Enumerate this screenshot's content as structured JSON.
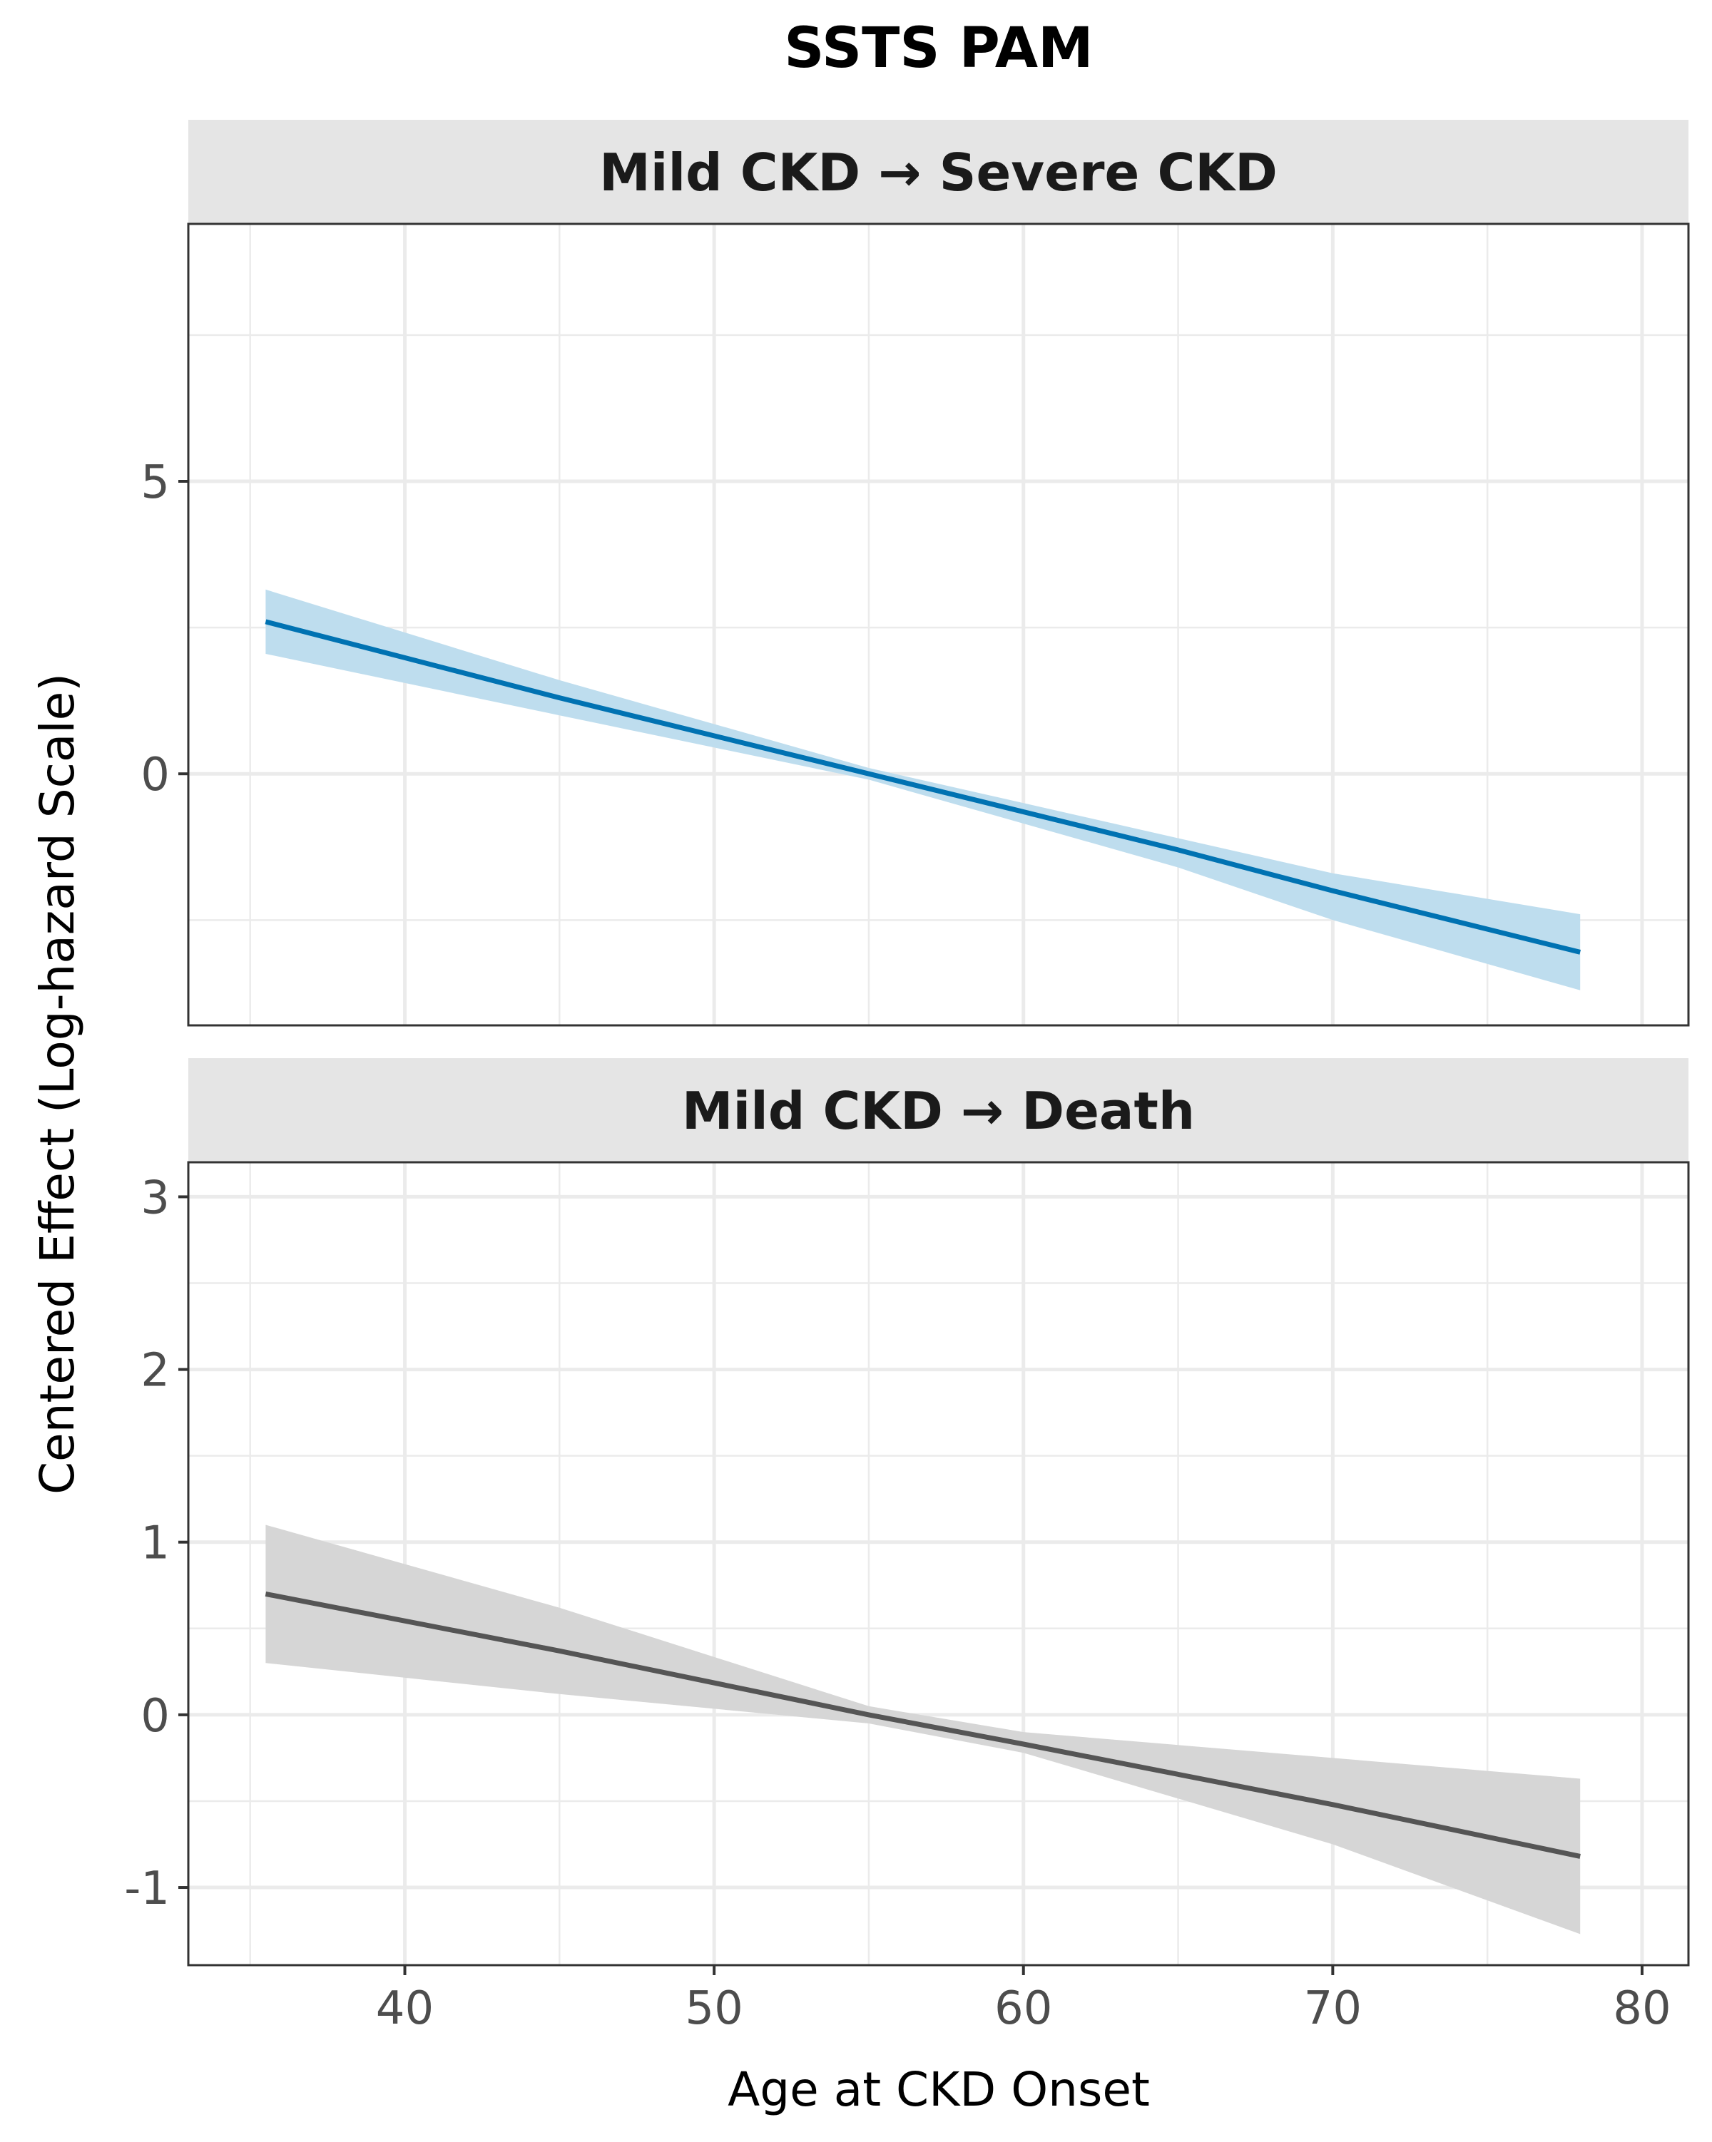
{
  "chart_data": {
    "type": "line",
    "title": "SSTS PAM",
    "xlabel": "Age at CKD Onset",
    "ylabel": "Centered Effect (Log-hazard Scale)",
    "x_ticks": [
      40,
      50,
      60,
      70,
      80
    ],
    "xlim": [
      33,
      81.5
    ],
    "colors": {
      "blue": "#0072B2",
      "blue_band": "#BEDDEE",
      "gray": "#555555",
      "gray_band": "#D6D6D6"
    },
    "grid": true,
    "panels": [
      {
        "strip": "Mild CKD → Severe CKD",
        "ylim": [
          -4.3,
          9.4
        ],
        "y_ticks": [
          0,
          5
        ],
        "y_tick_labels": [
          "0",
          "5"
        ],
        "line_color": "#0072B2",
        "band_color": "#BEDDEE",
        "series": [
          {
            "x": [
              35.5,
              45,
              55,
              65,
              70,
              78
            ],
            "y": [
              2.6,
              1.3,
              0.0,
              -1.3,
              -2.0,
              -3.05
            ],
            "lower": [
              2.05,
              1.0,
              -0.1,
              -1.6,
              -2.5,
              -3.7
            ],
            "upper": [
              3.15,
              1.6,
              0.1,
              -1.1,
              -1.7,
              -2.4
            ]
          }
        ]
      },
      {
        "strip": "Mild CKD → Death",
        "ylim": [
          -1.45,
          3.2
        ],
        "y_ticks": [
          -1,
          0,
          1,
          2,
          3
        ],
        "y_tick_labels": [
          "-1",
          "0",
          "1",
          "2",
          "3"
        ],
        "line_color": "#555555",
        "band_color": "#D6D6D6",
        "series": [
          {
            "x": [
              35.5,
              45,
              55,
              60,
              70,
              78
            ],
            "y": [
              0.7,
              0.37,
              0.0,
              -0.17,
              -0.52,
              -0.82
            ],
            "lower": [
              0.3,
              0.12,
              -0.05,
              -0.22,
              -0.75,
              -1.27
            ],
            "upper": [
              1.1,
              0.62,
              0.05,
              -0.1,
              -0.25,
              -0.37
            ]
          }
        ]
      }
    ]
  }
}
